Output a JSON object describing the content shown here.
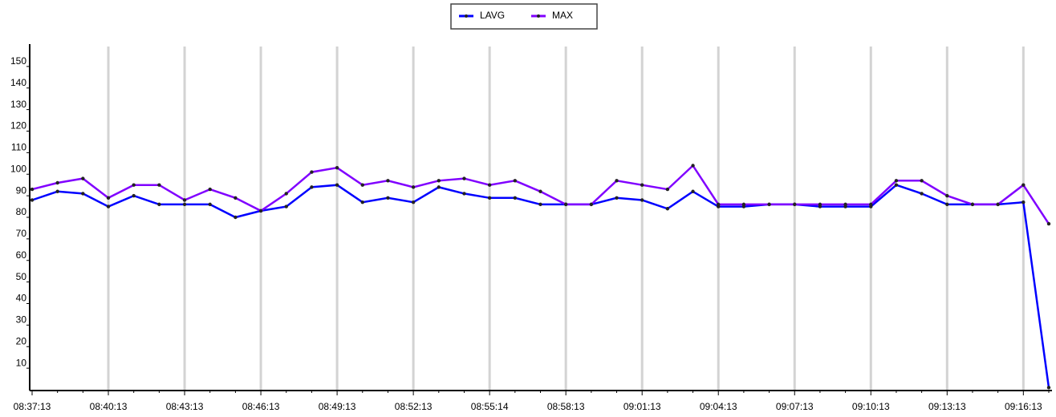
{
  "chart_data": {
    "type": "line",
    "categories": [
      "08:37:13",
      null,
      null,
      "08:40:13",
      null,
      null,
      "08:43:13",
      null,
      null,
      "08:46:13",
      null,
      null,
      "08:49:13",
      null,
      null,
      "08:52:13",
      null,
      null,
      "08:55:14",
      null,
      null,
      "08:58:13",
      null,
      null,
      "09:01:13",
      null,
      null,
      "09:04:13",
      null,
      null,
      "09:07:13",
      null,
      null,
      "09:10:13",
      null,
      null,
      "09:13:13",
      null,
      null,
      "09:16:13",
      null
    ],
    "series": [
      {
        "name": "LAVG",
        "color": "#0000ff",
        "values": [
          88,
          92,
          91,
          85,
          90,
          86,
          86,
          86,
          80,
          83,
          85,
          94,
          95,
          87,
          89,
          87,
          94,
          91,
          89,
          89,
          86,
          86,
          86,
          89,
          88,
          84,
          92,
          85,
          85,
          86,
          86,
          85,
          85,
          85,
          95,
          91,
          86,
          86,
          86,
          87,
          1
        ]
      },
      {
        "name": "MAX",
        "color": "#8000ff",
        "values": [
          93,
          96,
          98,
          89,
          95,
          95,
          88,
          93,
          89,
          83,
          91,
          101,
          103,
          95,
          97,
          94,
          97,
          98,
          95,
          97,
          92,
          86,
          86,
          97,
          95,
          93,
          104,
          86,
          86,
          86,
          86,
          86,
          86,
          86,
          97,
          97,
          90,
          86,
          86,
          95,
          77
        ]
      }
    ],
    "ylim": [
      0,
      160
    ],
    "yticks": [
      10,
      20,
      30,
      40,
      50,
      60,
      70,
      80,
      90,
      100,
      110,
      120,
      130,
      140,
      150
    ],
    "grid": true,
    "legend": "top"
  }
}
